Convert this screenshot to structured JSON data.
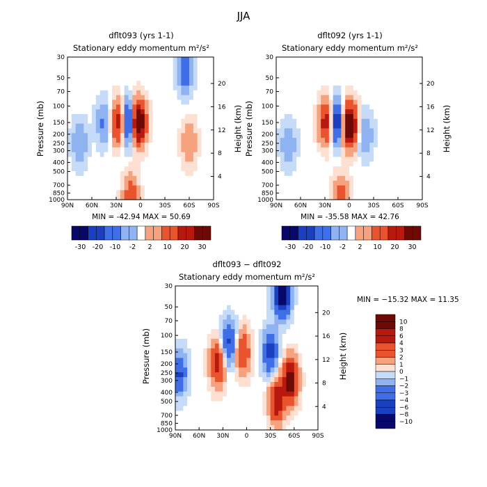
{
  "title": "JJA",
  "colors": {
    "c-30": "#08086b",
    "c-20": "#1a3fbf",
    "c-10": "#3f6ee6",
    "c-2": "#8fb2f0",
    "c-1": "#c6dbf7",
    "c0": "#ffffff",
    "c2": "#fde0d2",
    "c10": "#f7a27e",
    "c20": "#e9542e",
    "c30": "#b8190f",
    "c40": "#6e0a05"
  },
  "chart_data": [
    {
      "type": "heatmap",
      "id": "p1",
      "title": "dflt093 (yrs 1-1)",
      "subtitle": "Stationary eddy momentum  m²/s²",
      "ylabel": "Pressure (mb)",
      "y2label": "Height (km)",
      "xticks": [
        "90N",
        "60N",
        "30N",
        "0",
        "30S",
        "60S",
        "90S"
      ],
      "xlim": [
        90,
        -90
      ],
      "yticks": [
        30,
        50,
        70,
        100,
        150,
        200,
        250,
        300,
        400,
        500,
        700,
        850,
        1000
      ],
      "ylim": [
        30,
        1000
      ],
      "heightticks": [
        20,
        16,
        12,
        8,
        4
      ],
      "minmax": "MIN = -42.94   MAX =  50.69",
      "colorbar": [
        "-30",
        "-20",
        "-10",
        "-2",
        "2",
        "10",
        "20",
        "30"
      ],
      "features": [
        {
          "lat": 3,
          "p": 150,
          "v": 50,
          "label": "jet core maximum"
        },
        {
          "lat": 27,
          "p": 150,
          "v": 28,
          "label": "positive lobe"
        },
        {
          "lat": 15,
          "p": 150,
          "v": -35,
          "label": "negative lobe"
        },
        {
          "lat": 45,
          "p": 150,
          "v": -12,
          "label": "negative lobe"
        },
        {
          "lat": 75,
          "p": 250,
          "v": -10,
          "label": "negative lobe"
        },
        {
          "lat": -60,
          "p": 250,
          "v": 10,
          "label": "positive lobe"
        },
        {
          "lat": -55,
          "p": 40,
          "v": -20,
          "label": "upper negative"
        },
        {
          "lat": 12,
          "p": 950,
          "v": 18,
          "label": "surface positive"
        }
      ]
    },
    {
      "type": "heatmap",
      "id": "p2",
      "title": "dflt092 (yrs 1-1)",
      "subtitle": "Stationary eddy momentum  m²/s²",
      "ylabel": "Pressure (mb)",
      "y2label": "Height (km)",
      "xticks": [
        "90N",
        "60N",
        "30N",
        "0",
        "30S",
        "60S",
        "90S"
      ],
      "xlim": [
        90,
        -90
      ],
      "yticks": [
        30,
        50,
        70,
        100,
        150,
        200,
        250,
        300,
        400,
        500,
        700,
        850,
        1000
      ],
      "ylim": [
        30,
        1000
      ],
      "heightticks": [
        20,
        16,
        12,
        8,
        4
      ],
      "minmax": "MIN = -35.58   MAX =  42.76",
      "colorbar": [
        "-30",
        "-20",
        "-10",
        "-2",
        "2",
        "10",
        "20",
        "30"
      ],
      "features": [
        {
          "lat": 0,
          "p": 160,
          "v": 42,
          "label": "jet core maximum"
        },
        {
          "lat": 28,
          "p": 150,
          "v": 25,
          "label": "positive lobe"
        },
        {
          "lat": 15,
          "p": 150,
          "v": -30,
          "label": "negative lobe"
        },
        {
          "lat": 75,
          "p": 250,
          "v": -8,
          "label": "negative lobe"
        },
        {
          "lat": -20,
          "p": 200,
          "v": -8,
          "label": "negative lobe"
        },
        {
          "lat": 10,
          "p": 950,
          "v": 15,
          "label": "surface positive"
        }
      ]
    },
    {
      "type": "heatmap",
      "id": "p3",
      "title": "dflt093 − dflt092",
      "subtitle": "Stationary eddy momentum  m²/s²",
      "ylabel": "Pressure (mb)",
      "y2label": "Height (km)",
      "xticks": [
        "90N",
        "60N",
        "30N",
        "0",
        "30S",
        "60S",
        "90S"
      ],
      "xlim": [
        90,
        -90
      ],
      "yticks": [
        30,
        50,
        70,
        100,
        150,
        200,
        250,
        300,
        400,
        500,
        700,
        850,
        1000
      ],
      "ylim": [
        30,
        1000
      ],
      "heightticks": [
        20,
        16,
        12,
        8,
        4
      ],
      "minmax": "MIN = −15.32   MAX =  11.35",
      "colorbar": [
        "10",
        "8",
        "6",
        "4",
        "3",
        "2",
        "1",
        "0",
        "−1",
        "−2",
        "−3",
        "−4",
        "−6",
        "−8",
        "−10"
      ],
      "features": [
        {
          "lat": -55,
          "p": 300,
          "v": 11,
          "label": "positive maximum"
        },
        {
          "lat": -38,
          "p": 500,
          "v": 8,
          "label": "positive lobe"
        },
        {
          "lat": -45,
          "p": 35,
          "v": -15,
          "label": "negative minimum"
        },
        {
          "lat": 5,
          "p": 150,
          "v": 6,
          "label": "positive lobe"
        },
        {
          "lat": 37,
          "p": 200,
          "v": 7,
          "label": "positive lobe"
        },
        {
          "lat": 22,
          "p": 120,
          "v": -6,
          "label": "negative lobe"
        },
        {
          "lat": -30,
          "p": 150,
          "v": -7,
          "label": "negative lobe"
        },
        {
          "lat": 85,
          "p": 250,
          "v": -6,
          "label": "negative lobe"
        }
      ]
    }
  ]
}
